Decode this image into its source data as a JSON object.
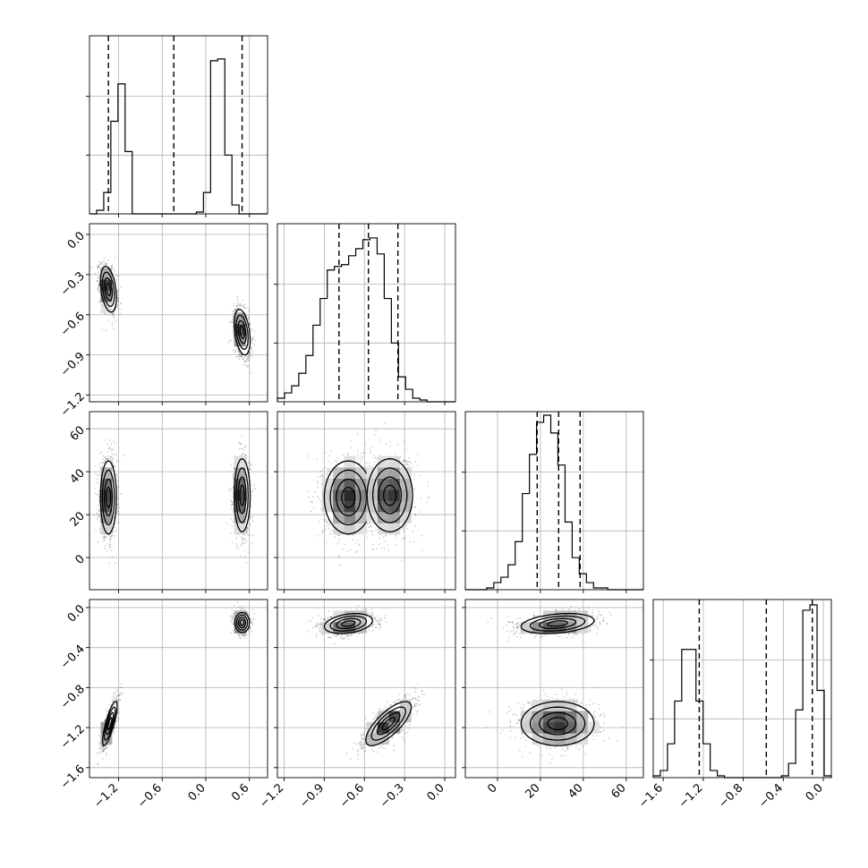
{
  "chart_data": {
    "type": "corner",
    "parameters": 4,
    "panels_layout": "lower-triangular 4x4",
    "grid": true,
    "style": {
      "hist_color": "#000000",
      "quantile_line_style": "dashed",
      "contour_color": "#000000",
      "scatter_color": "#000000"
    },
    "axes": [
      {
        "range": [
          -1.6,
          0.85
        ],
        "ticks": [
          -1.2,
          -0.6,
          0.0,
          0.6
        ],
        "tick_labels": [
          "−1.2",
          "−0.6",
          "0.0",
          "0.6"
        ],
        "hist": {
          "bin_start": -1.6,
          "bin_width": 0.098,
          "counts": [
            0,
            0.02,
            0.12,
            0.52,
            0.73,
            0.35,
            0,
            0,
            0,
            0,
            0,
            0,
            0,
            0,
            0,
            0.01,
            0.12,
            0.86,
            0.87,
            0.33,
            0.05,
            0,
            0,
            0,
            0
          ]
        },
        "quantiles": [
          -1.34,
          -0.44,
          0.5
        ]
      },
      {
        "range": [
          -1.25,
          0.08
        ],
        "ticks": [
          -1.2,
          -0.9,
          -0.6,
          -0.3,
          0.0
        ],
        "tick_labels": [
          "−1.2",
          "−0.9",
          "−0.6",
          "−0.3",
          "0.0"
        ],
        "hist": {
          "bin_start": -1.25,
          "bin_width": 0.0532,
          "counts": [
            0.02,
            0.05,
            0.09,
            0.16,
            0.26,
            0.43,
            0.58,
            0.74,
            0.76,
            0.77,
            0.82,
            0.86,
            0.91,
            0.92,
            0.83,
            0.58,
            0.33,
            0.14,
            0.07,
            0.02,
            0.01,
            0,
            0,
            0,
            0
          ]
        },
        "quantiles": [
          -0.79,
          -0.57,
          -0.35
        ]
      },
      {
        "range": [
          -15,
          68
        ],
        "ticks": [
          0,
          20,
          40,
          60
        ],
        "tick_labels": [
          "0",
          "20",
          "40",
          "60"
        ],
        "hist": {
          "bin_start": -15,
          "bin_width": 3.32,
          "counts": [
            0,
            0,
            0,
            0.01,
            0.04,
            0.07,
            0.14,
            0.27,
            0.54,
            0.76,
            0.94,
            0.98,
            0.88,
            0.7,
            0.38,
            0.18,
            0.09,
            0.04,
            0.01,
            0.01,
            0,
            0,
            0,
            0,
            0
          ]
        },
        "quantiles": [
          18.5,
          28.5,
          38.5
        ]
      },
      {
        "range": [
          -1.7,
          0.08
        ],
        "ticks": [
          -1.6,
          -1.2,
          -0.8,
          -0.4,
          0.0
        ],
        "tick_labels": [
          "−1.6",
          "−1.2",
          "−0.8",
          "−0.4",
          "0.0"
        ],
        "hist": {
          "bin_start": -1.7,
          "bin_width": 0.0712,
          "counts": [
            0.01,
            0.04,
            0.19,
            0.43,
            0.72,
            0.72,
            0.43,
            0.19,
            0.04,
            0.01,
            0,
            0,
            0,
            0,
            0,
            0,
            0,
            0,
            0.01,
            0.08,
            0.38,
            0.94,
            0.97,
            0.49,
            0.01
          ]
        },
        "quantiles": [
          -1.24,
          -0.57,
          -0.11
        ]
      }
    ],
    "hist_ylim": [
      0,
      1.0
    ],
    "hist_yticks": [
      0.33,
      0.66
    ],
    "pairs": [
      {
        "row": 1,
        "col": 0,
        "clusters": [
          {
            "mx": -1.34,
            "my": -0.41,
            "sx": 0.055,
            "sy": 0.085,
            "rho": -0.35,
            "w": 0.5
          },
          {
            "mx": 0.5,
            "my": -0.73,
            "sx": 0.055,
            "sy": 0.085,
            "rho": -0.35,
            "w": 0.5
          }
        ]
      },
      {
        "row": 2,
        "col": 0,
        "clusters": [
          {
            "mx": -1.34,
            "my": 28,
            "sx": 0.055,
            "sy": 8.5,
            "rho": 0.0,
            "w": 0.5
          },
          {
            "mx": 0.5,
            "my": 29,
            "sx": 0.055,
            "sy": 8.5,
            "rho": 0.0,
            "w": 0.5
          }
        ]
      },
      {
        "row": 2,
        "col": 1,
        "clusters": [
          {
            "mx": -0.72,
            "my": 28,
            "sx": 0.09,
            "sy": 8.5,
            "rho": 0.0,
            "w": 0.5
          },
          {
            "mx": -0.41,
            "my": 29,
            "sx": 0.085,
            "sy": 8.5,
            "rho": 0.0,
            "w": 0.5
          }
        ]
      },
      {
        "row": 3,
        "col": 0,
        "clusters": [
          {
            "mx": -1.32,
            "my": -1.16,
            "sx": 0.05,
            "sy": 0.11,
            "rho": 0.8,
            "w": 0.5
          },
          {
            "mx": 0.5,
            "my": -0.15,
            "sx": 0.05,
            "sy": 0.05,
            "rho": 0.0,
            "w": 0.5
          }
        ]
      },
      {
        "row": 3,
        "col": 1,
        "clusters": [
          {
            "mx": -0.72,
            "my": -0.16,
            "sx": 0.09,
            "sy": 0.05,
            "rho": 0.3,
            "w": 0.5
          },
          {
            "mx": -0.42,
            "my": -1.16,
            "sx": 0.085,
            "sy": 0.11,
            "rho": 0.75,
            "w": 0.5
          }
        ]
      },
      {
        "row": 3,
        "col": 2,
        "clusters": [
          {
            "mx": 28,
            "my": -0.16,
            "sx": 8.5,
            "sy": 0.05,
            "rho": 0.3,
            "w": 0.5
          },
          {
            "mx": 28,
            "my": -1.16,
            "sx": 8.5,
            "sy": 0.11,
            "rho": 0.0,
            "w": 0.5
          }
        ]
      }
    ]
  }
}
